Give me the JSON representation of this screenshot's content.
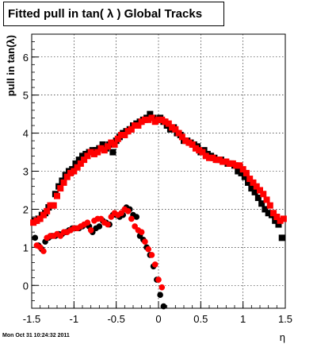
{
  "title": "Fitted pull in tan( λ )  Global Tracks",
  "footer": "Mon Oct 31 10:24:32 2011",
  "chart_data": {
    "type": "scatter",
    "xlabel": "η",
    "ylabel": "pull in tan(λ)",
    "xlim": [
      -1.5,
      1.5
    ],
    "ylim": [
      -0.6,
      6.6
    ],
    "xticks": [
      "-1.5",
      "-1",
      "-0.5",
      "0",
      "0.5",
      "1",
      "1.5"
    ],
    "yticks": [
      "0",
      "1",
      "2",
      "3",
      "4",
      "5",
      "6"
    ],
    "grid": true,
    "series": [
      {
        "marker": "square",
        "color": "#000000",
        "x": [
          -1.46,
          -1.42,
          -1.38,
          -1.34,
          -1.3,
          -1.26,
          -1.22,
          -1.18,
          -1.14,
          -1.1,
          -1.06,
          -1.02,
          -0.98,
          -0.94,
          -0.9,
          -0.86,
          -0.82,
          -0.78,
          -0.74,
          -0.7,
          -0.66,
          -0.62,
          -0.58,
          -0.54,
          -0.5,
          -0.46,
          -0.42,
          -0.38,
          -0.34,
          -0.3,
          -0.26,
          -0.22,
          -0.18,
          -0.14,
          -0.1,
          -0.06,
          -0.02,
          0.02,
          0.06,
          0.1,
          0.14,
          0.18,
          0.22,
          0.26,
          0.3,
          0.34,
          0.38,
          0.42,
          0.46,
          0.5,
          0.54,
          0.58,
          0.62,
          0.66,
          0.7,
          0.74,
          0.78,
          0.82,
          0.86,
          0.9,
          0.94,
          0.98,
          1.02,
          1.06,
          1.1,
          1.14,
          1.18,
          1.22,
          1.26,
          1.3,
          1.34,
          1.38,
          1.42,
          1.46
        ],
        "y": [
          1.7,
          1.75,
          1.85,
          1.9,
          2.05,
          2.1,
          2.4,
          2.6,
          2.75,
          2.9,
          3.0,
          3.05,
          3.2,
          3.3,
          3.4,
          3.45,
          3.5,
          3.55,
          3.55,
          3.6,
          3.7,
          3.6,
          3.7,
          3.5,
          3.8,
          3.9,
          4.0,
          4.05,
          4.1,
          4.2,
          4.25,
          4.3,
          4.35,
          4.4,
          4.5,
          4.4,
          4.35,
          4.4,
          4.3,
          4.2,
          4.1,
          4.15,
          4.0,
          3.95,
          3.8,
          3.8,
          3.75,
          3.7,
          3.65,
          3.5,
          3.55,
          3.45,
          3.4,
          3.35,
          3.3,
          3.3,
          3.25,
          3.2,
          3.2,
          3.15,
          3.0,
          2.95,
          2.85,
          2.7,
          2.55,
          2.45,
          2.3,
          2.15,
          2.0,
          1.9,
          1.85,
          1.7,
          1.6,
          1.25
        ]
      },
      {
        "marker": "square",
        "color": "#ff0000",
        "x": [
          -1.48,
          -1.44,
          -1.4,
          -1.36,
          -1.32,
          -1.28,
          -1.24,
          -1.2,
          -1.16,
          -1.12,
          -1.08,
          -1.04,
          -1.0,
          -0.96,
          -0.92,
          -0.88,
          -0.84,
          -0.8,
          -0.76,
          -0.72,
          -0.68,
          -0.64,
          -0.6,
          -0.56,
          -0.52,
          -0.48,
          -0.44,
          -0.4,
          -0.36,
          -0.32,
          -0.28,
          -0.24,
          -0.2,
          -0.16,
          -0.12,
          -0.08,
          -0.04,
          0.0,
          0.04,
          0.08,
          0.12,
          0.16,
          0.2,
          0.24,
          0.28,
          0.32,
          0.36,
          0.4,
          0.44,
          0.48,
          0.52,
          0.56,
          0.6,
          0.64,
          0.68,
          0.72,
          0.76,
          0.8,
          0.84,
          0.88,
          0.92,
          0.96,
          1.0,
          1.04,
          1.08,
          1.12,
          1.16,
          1.2,
          1.24,
          1.28,
          1.32,
          1.36,
          1.4,
          1.44,
          1.48
        ],
        "y": [
          1.65,
          1.7,
          1.75,
          1.85,
          1.95,
          2.1,
          2.1,
          2.35,
          2.55,
          2.7,
          2.85,
          2.95,
          3.0,
          3.1,
          3.2,
          3.3,
          3.4,
          3.5,
          3.45,
          3.5,
          3.6,
          3.55,
          3.65,
          3.75,
          3.7,
          3.85,
          3.95,
          3.95,
          4.05,
          4.1,
          4.2,
          4.2,
          4.3,
          4.35,
          4.35,
          4.4,
          4.3,
          4.35,
          4.35,
          4.3,
          4.25,
          4.15,
          4.1,
          4.0,
          3.9,
          3.8,
          3.75,
          3.7,
          3.6,
          3.55,
          3.5,
          3.4,
          3.35,
          3.35,
          3.3,
          3.3,
          3.25,
          3.25,
          3.2,
          3.2,
          3.15,
          3.15,
          3.05,
          2.95,
          2.8,
          2.7,
          2.6,
          2.5,
          2.4,
          2.25,
          2.1,
          1.9,
          1.8,
          1.7,
          1.75
        ]
      },
      {
        "marker": "circle",
        "color": "#000000",
        "x": [
          -1.46,
          -1.42,
          -1.38,
          -1.34,
          -1.3,
          -1.26,
          -1.22,
          -1.18,
          -1.14,
          -1.1,
          -1.06,
          -1.02,
          -0.98,
          -0.94,
          -0.9,
          -0.86,
          -0.82,
          -0.78,
          -0.74,
          -0.7,
          -0.66,
          -0.62,
          -0.58,
          -0.54,
          -0.5,
          -0.46,
          -0.42,
          -0.38,
          -0.34,
          -0.3,
          -0.26,
          -0.22,
          -0.18,
          -0.14,
          -0.1,
          -0.06,
          -0.02,
          0.02,
          0.06
        ],
        "y": [
          1.25,
          1.05,
          0.95,
          1.15,
          1.25,
          1.3,
          1.3,
          1.35,
          1.35,
          1.4,
          1.45,
          1.5,
          1.5,
          1.5,
          1.55,
          1.6,
          1.55,
          1.4,
          1.5,
          1.55,
          1.7,
          1.65,
          1.6,
          1.85,
          1.85,
          1.8,
          1.85,
          2.05,
          2.0,
          1.85,
          1.8,
          1.3,
          1.2,
          1.0,
          0.8,
          0.5,
          0.15,
          -0.25,
          -0.55
        ]
      },
      {
        "marker": "circle",
        "color": "#ff0000",
        "x": [
          -1.48,
          -1.44,
          -1.4,
          -1.36,
          -1.32,
          -1.28,
          -1.24,
          -1.2,
          -1.16,
          -1.12,
          -1.08,
          -1.04,
          -1.0,
          -0.96,
          -0.92,
          -0.88,
          -0.84,
          -0.8,
          -0.76,
          -0.72,
          -0.68,
          -0.64,
          -0.6,
          -0.56,
          -0.52,
          -0.48,
          -0.44,
          -0.4,
          -0.36,
          -0.32,
          -0.28,
          -0.24,
          -0.2,
          -0.16,
          -0.12,
          -0.08,
          -0.04,
          0.0,
          0.04
        ],
        "y": [
          1.65,
          1.05,
          1.0,
          0.9,
          1.25,
          1.3,
          1.3,
          1.35,
          1.3,
          1.4,
          1.4,
          1.45,
          1.5,
          1.5,
          1.55,
          1.6,
          1.65,
          1.45,
          1.7,
          1.75,
          1.75,
          1.65,
          1.6,
          1.8,
          1.9,
          1.85,
          1.9,
          2.0,
          1.95,
          1.75,
          1.55,
          1.45,
          1.4,
          1.15,
          0.95,
          0.8,
          0.55,
          0.15,
          -0.05
        ]
      }
    ]
  }
}
